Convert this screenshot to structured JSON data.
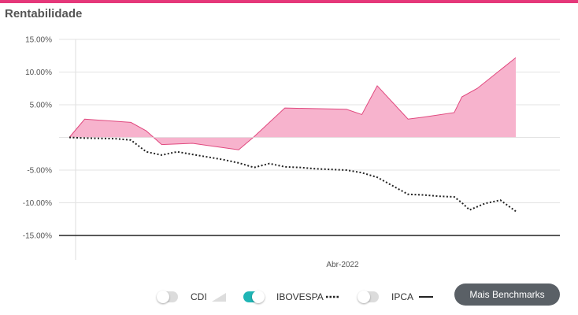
{
  "header": {
    "title": "Rentabilidade"
  },
  "colors": {
    "accent": "#e5387a",
    "area_fill": "#f7b3cd",
    "area_line": "#e0487e",
    "ibovespa_line": "#222222",
    "ipca_line": "#222222",
    "toggle_on": "#1fb5b5",
    "toggle_off": "#dcdcdc"
  },
  "legend": {
    "items": [
      {
        "label": "CDI",
        "enabled": false,
        "icon": "area-triangle-icon"
      },
      {
        "label": "IBOVESPA",
        "enabled": true,
        "icon": "dotted-line-icon"
      },
      {
        "label": "IPCA",
        "enabled": false,
        "icon": "solid-line-icon"
      }
    ],
    "more_button": "Mais Benchmarks"
  },
  "chart_data": {
    "type": "area",
    "ylim": [
      -15,
      15
    ],
    "yticks": [
      15,
      10,
      5,
      0,
      -5,
      -10,
      -15
    ],
    "ytick_labels": [
      "15.00%",
      "10.00%",
      "5.00%",
      "",
      "-5.00%",
      "-10.00%",
      "-15.00%"
    ],
    "xtick_labels": [
      "Abr-2022"
    ],
    "grid": true,
    "legend_position": "bottom",
    "series": [
      {
        "type": "area",
        "x": [
          0,
          2,
          8,
          10,
          12,
          16,
          22,
          24,
          28,
          36,
          38,
          40,
          44,
          46,
          50,
          51,
          53,
          58
        ],
        "values": [
          0,
          2.8,
          2.3,
          1.0,
          -1.1,
          -0.9,
          -1.9,
          0.1,
          4.5,
          4.3,
          3.5,
          7.9,
          2.8,
          3.1,
          3.8,
          6.2,
          7.5,
          12.2
        ]
      },
      {
        "name": "IBOVESPA",
        "type": "line",
        "style": "dotted",
        "x": [
          0,
          2,
          6,
          8,
          10,
          12,
          14,
          16,
          18,
          20,
          22,
          24,
          26,
          28,
          30,
          32,
          34,
          36,
          38,
          40,
          42,
          44,
          46,
          48,
          50,
          51,
          52,
          54,
          56,
          58
        ],
        "values": [
          0,
          -0.1,
          -0.2,
          -0.4,
          -2.2,
          -2.7,
          -2.2,
          -2.6,
          -3.0,
          -3.4,
          -3.9,
          -4.6,
          -4.0,
          -4.5,
          -4.6,
          -4.8,
          -4.9,
          -5.0,
          -5.4,
          -6.1,
          -7.4,
          -8.7,
          -8.8,
          -9.0,
          -9.1,
          -10.0,
          -11.1,
          -10.1,
          -9.6,
          -11.3
        ]
      }
    ]
  }
}
